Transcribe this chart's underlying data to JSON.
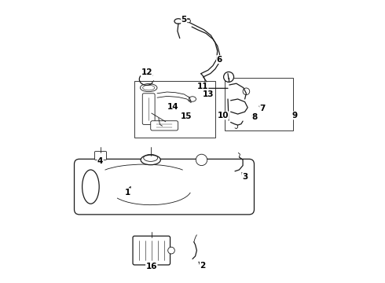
{
  "bg_color": "#ffffff",
  "line_color": "#1a1a1a",
  "label_color": "#000000",
  "figsize": [
    4.9,
    3.6
  ],
  "dpi": 100,
  "parts_labels": {
    "1": [
      0.285,
      0.335,
      0.285,
      0.355
    ],
    "2": [
      0.54,
      0.058,
      0.52,
      0.075
    ],
    "3": [
      0.68,
      0.38,
      0.66,
      0.39
    ],
    "4": [
      0.175,
      0.43,
      0.175,
      0.445
    ],
    "5": [
      0.47,
      0.935,
      0.462,
      0.915
    ],
    "6": [
      0.595,
      0.79,
      0.575,
      0.8
    ],
    "7": [
      0.745,
      0.62,
      0.725,
      0.628
    ],
    "8": [
      0.71,
      0.59,
      0.695,
      0.598
    ],
    "9": [
      0.86,
      0.595,
      0.845,
      0.598
    ],
    "10": [
      0.61,
      0.593,
      0.63,
      0.6
    ],
    "11": [
      0.535,
      0.695,
      0.515,
      0.685
    ],
    "12": [
      0.335,
      0.74,
      0.335,
      0.725
    ],
    "13": [
      0.56,
      0.67,
      0.54,
      0.672
    ],
    "14": [
      0.43,
      0.625,
      0.415,
      0.632
    ],
    "15": [
      0.475,
      0.59,
      0.455,
      0.597
    ],
    "16": [
      0.355,
      0.058,
      0.355,
      0.075
    ]
  }
}
